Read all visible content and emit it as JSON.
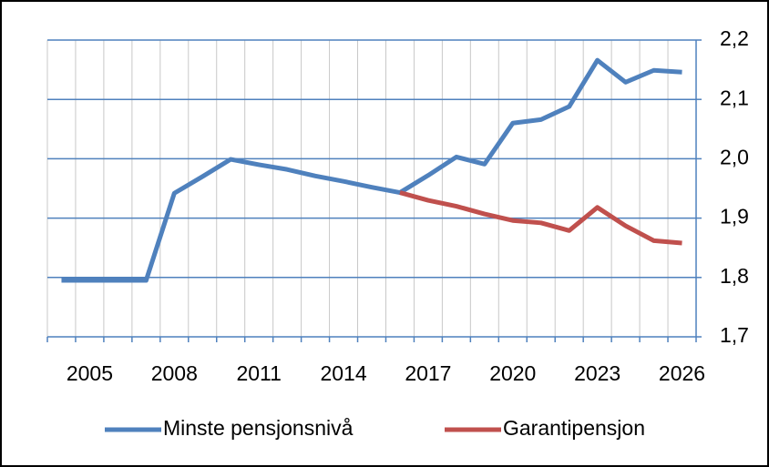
{
  "chart_data": {
    "type": "line",
    "x": [
      2004,
      2005,
      2006,
      2007,
      2008,
      2009,
      2010,
      2011,
      2012,
      2013,
      2014,
      2015,
      2016,
      2017,
      2018,
      2019,
      2020,
      2021,
      2022,
      2023,
      2024,
      2025,
      2026
    ],
    "series": [
      {
        "name": "Minste pensjonsnivå",
        "color": "#4f81bd",
        "values": [
          1.795,
          1.795,
          1.795,
          1.795,
          1.942,
          1.97,
          1.999,
          1.99,
          1.982,
          1.971,
          1.962,
          1.952,
          1.943,
          1.972,
          2.003,
          1.991,
          2.06,
          2.066,
          2.088,
          2.166,
          2.129,
          2.149,
          2.146
        ]
      },
      {
        "name": "Garantipensjon",
        "color": "#c0504d",
        "values": [
          null,
          null,
          null,
          null,
          null,
          null,
          null,
          null,
          null,
          null,
          null,
          null,
          1.943,
          1.93,
          1.92,
          1.907,
          1.896,
          1.892,
          1.879,
          1.918,
          1.887,
          1.862,
          1.858
        ]
      }
    ],
    "xlim": [
      2003.5,
      2026.5
    ],
    "xticks": [
      2005,
      2008,
      2011,
      2014,
      2017,
      2020,
      2023,
      2026
    ],
    "ylim": [
      1.7,
      2.2
    ],
    "yticks": [
      {
        "value": 1.7,
        "label": "1,7"
      },
      {
        "value": 1.8,
        "label": "1,8"
      },
      {
        "value": 1.9,
        "label": "1,9"
      },
      {
        "value": 2.0,
        "label": "2,0"
      },
      {
        "value": 2.1,
        "label": "2,1"
      },
      {
        "value": 2.2,
        "label": "2,2"
      }
    ],
    "grid": true,
    "legend": "bottom"
  }
}
